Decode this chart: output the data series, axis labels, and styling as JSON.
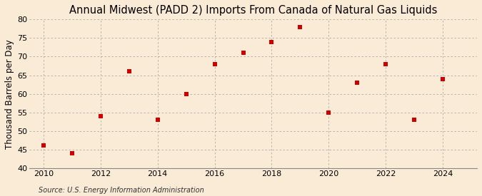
{
  "title": "Annual Midwest (PADD 2) Imports From Canada of Natural Gas Liquids",
  "ylabel": "Thousand Barrels per Day",
  "source": "Source: U.S. Energy Information Administration",
  "years": [
    2010,
    2011,
    2012,
    2013,
    2014,
    2015,
    2016,
    2017,
    2018,
    2019,
    2020,
    2021,
    2022,
    2023,
    2024
  ],
  "values": [
    46.2,
    44.0,
    54.0,
    66.0,
    53.0,
    60.0,
    68.0,
    71.0,
    74.0,
    78.0,
    55.0,
    63.0,
    68.0,
    53.0,
    64.0
  ],
  "marker_color": "#cc0000",
  "marker": "s",
  "marker_size": 18,
  "ylim": [
    40,
    80
  ],
  "yticks": [
    40,
    45,
    50,
    55,
    60,
    65,
    70,
    75,
    80
  ],
  "xticks": [
    2010,
    2012,
    2014,
    2016,
    2018,
    2020,
    2022,
    2024
  ],
  "xlim": [
    2009.5,
    2025.2
  ],
  "background_color": "#faebd7",
  "grid_color": "#aaaaaa",
  "title_fontsize": 10.5,
  "label_fontsize": 8.5,
  "tick_fontsize": 8,
  "source_fontsize": 7
}
